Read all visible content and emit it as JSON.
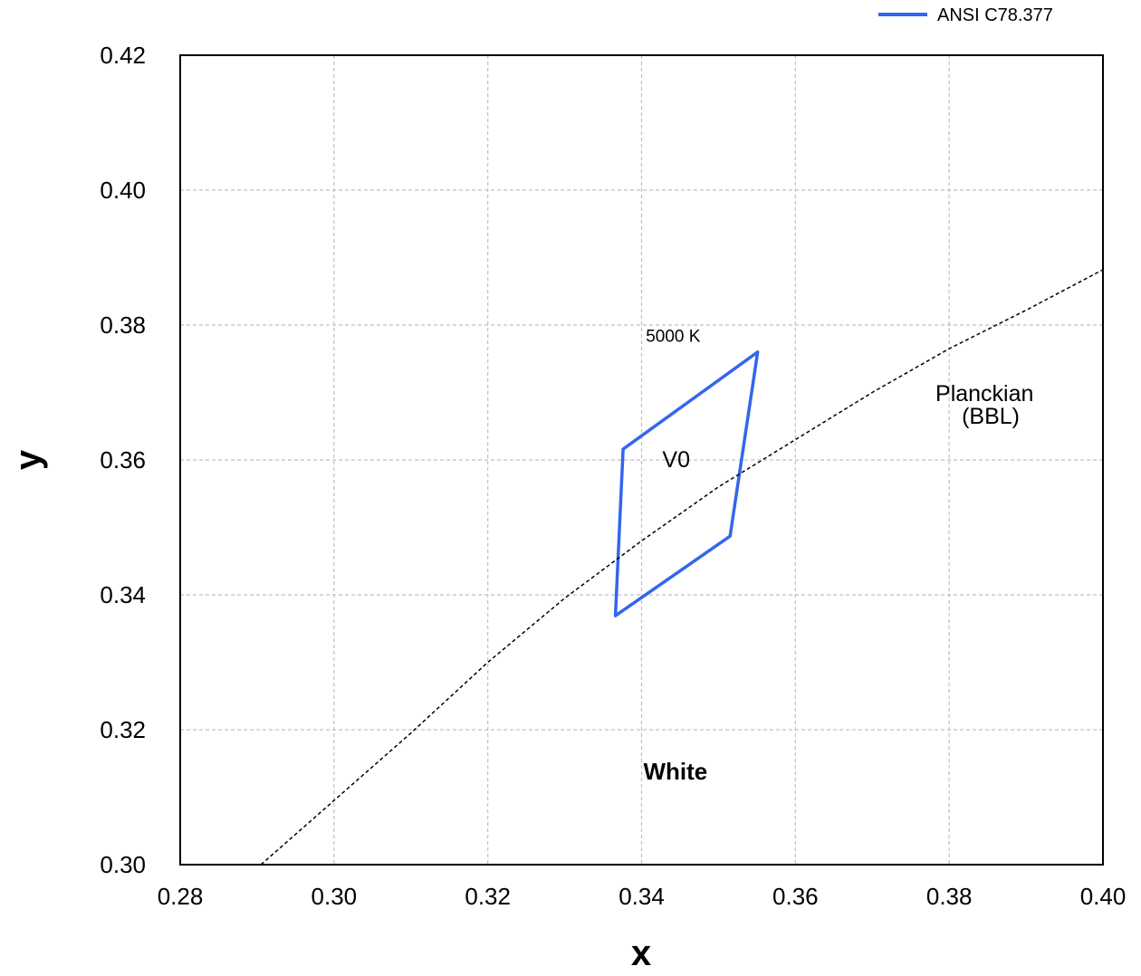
{
  "chart_data": {
    "type": "line",
    "xlabel": "x",
    "ylabel": "y",
    "xlim": [
      0.28,
      0.4
    ],
    "ylim": [
      0.3,
      0.42
    ],
    "xticks": [
      "0.28",
      "0.30",
      "0.32",
      "0.34",
      "0.36",
      "0.38",
      "0.40"
    ],
    "yticks": [
      "0.30",
      "0.32",
      "0.34",
      "0.36",
      "0.38",
      "0.40",
      "0.42"
    ],
    "grid": true,
    "legend": {
      "position": "top-right",
      "entries": [
        "ANSI C78.377"
      ]
    },
    "series": [
      {
        "name": "ANSI C78.377",
        "color": "#3366ee",
        "closed": true,
        "points": [
          [
            0.3376,
            0.3616
          ],
          [
            0.3551,
            0.376
          ],
          [
            0.3515,
            0.3487
          ],
          [
            0.3366,
            0.3369
          ]
        ]
      },
      {
        "style": "dashed",
        "color": "#000000",
        "points": [
          [
            0.2905,
            0.3
          ],
          [
            0.3,
            0.3095
          ],
          [
            0.31,
            0.3195
          ],
          [
            0.32,
            0.33
          ],
          [
            0.33,
            0.3395
          ],
          [
            0.34,
            0.348
          ],
          [
            0.35,
            0.356
          ],
          [
            0.36,
            0.363
          ],
          [
            0.37,
            0.37
          ],
          [
            0.38,
            0.3765
          ],
          [
            0.39,
            0.3822
          ],
          [
            0.4,
            0.3882
          ]
        ]
      }
    ],
    "annotations": [
      {
        "text": "5000 K",
        "x": 0.3441,
        "y": 0.3775
      },
      {
        "text": "V0",
        "x": 0.3445,
        "y": 0.3589
      },
      {
        "text": "Planckian",
        "x": 0.3846,
        "y": 0.3687
      },
      {
        "text": "(BBL)",
        "x": 0.3854,
        "y": 0.3654
      },
      {
        "text": "White",
        "x": 0.3444,
        "y": 0.3126,
        "color": "#3366ee",
        "bold": true
      }
    ]
  }
}
